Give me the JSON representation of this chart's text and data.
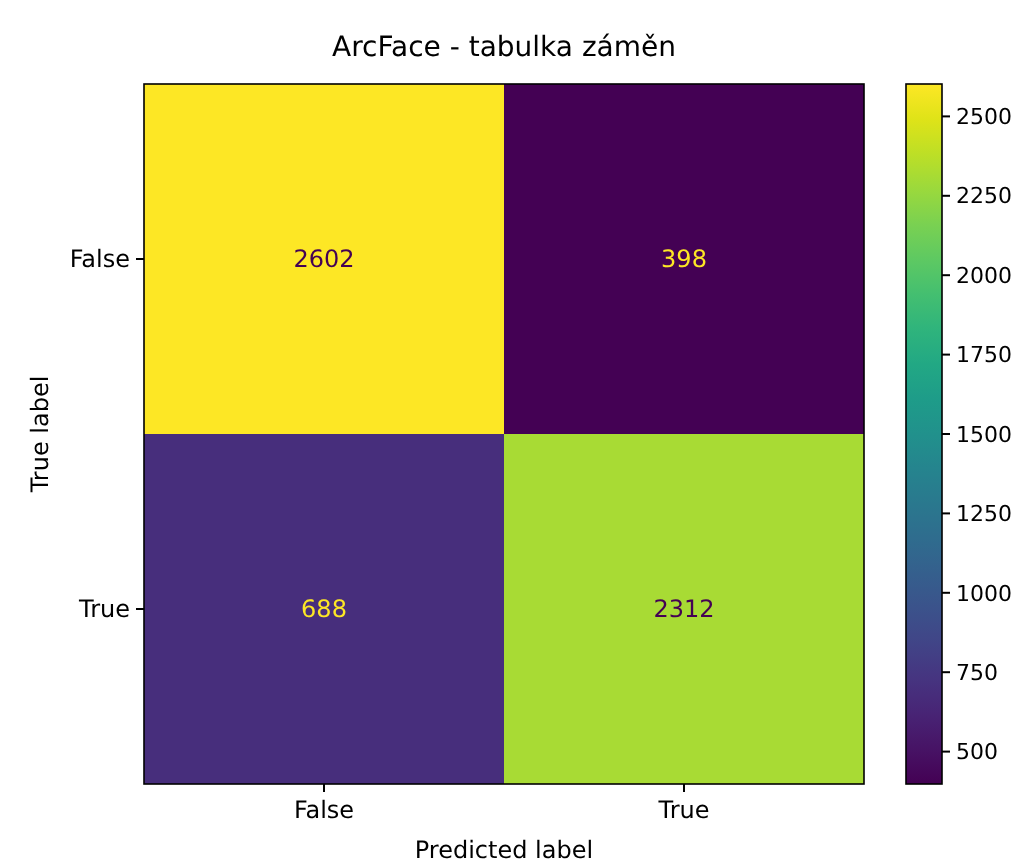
{
  "chart_data": {
    "type": "heatmap",
    "title": "ArcFace - tabulka záměn",
    "xlabel": "Predicted label",
    "ylabel": "True label",
    "categories": [
      "False",
      "True"
    ],
    "y_categories": [
      "False",
      "True"
    ],
    "cells": [
      [
        2602,
        398
      ],
      [
        688,
        2312
      ]
    ],
    "clim": [
      398,
      2602
    ],
    "cticks": [
      500,
      750,
      1000,
      1250,
      1500,
      1750,
      2000,
      2250,
      2500
    ],
    "data_labels": true
  }
}
